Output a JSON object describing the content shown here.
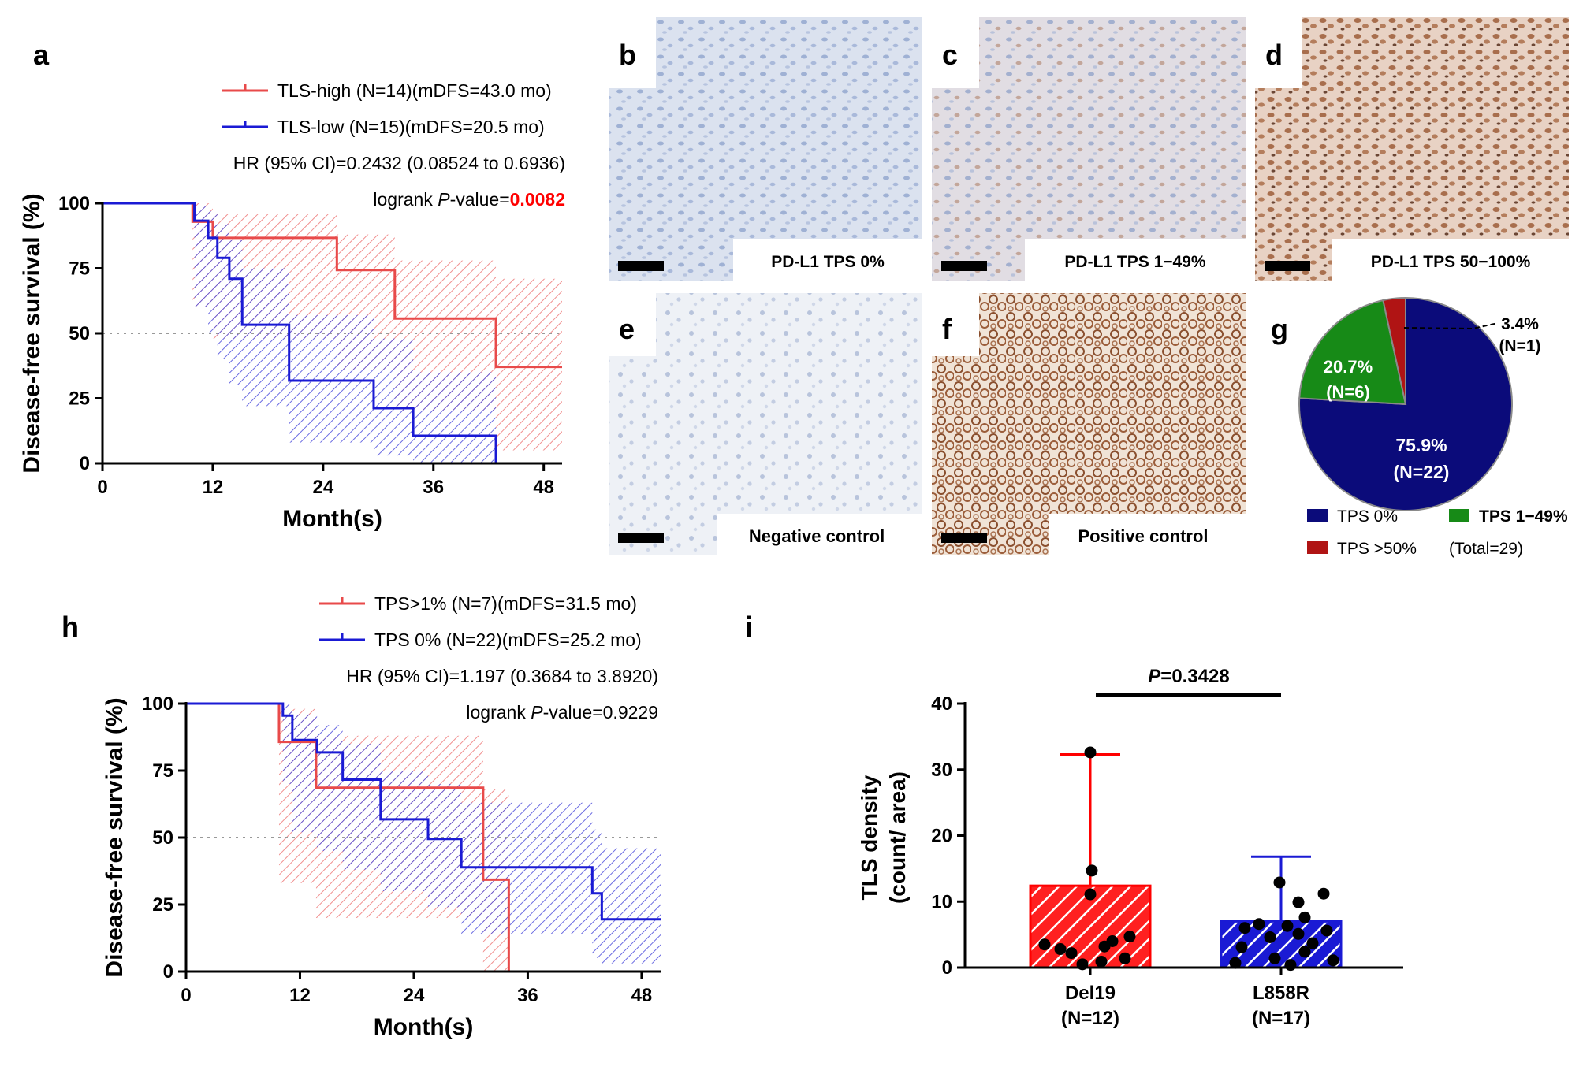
{
  "figure": {
    "panel_labels": [
      "a",
      "b",
      "c",
      "d",
      "e",
      "f",
      "g",
      "h",
      "i"
    ],
    "micrographs": [
      {
        "id": "b",
        "caption": "PD-L1 TPS 0%",
        "tone": "#c9d4e6"
      },
      {
        "id": "c",
        "caption": "PD-L1 TPS 1−49%",
        "tone": "#d6d3dc"
      },
      {
        "id": "d",
        "caption": "PD-L1 TPS 50−100%",
        "tone": "#c9a48f"
      },
      {
        "id": "e",
        "caption": "Negative control",
        "tone": "#dfe4ee"
      },
      {
        "id": "f",
        "caption": "Positive control",
        "tone": "#b57c5d"
      }
    ]
  },
  "chart_data": [
    {
      "id": "a",
      "type": "line",
      "subtype": "kaplan-meier",
      "xlabel": "Month(s)",
      "ylabel": "Disease-free survival (%)",
      "xticks": [
        0,
        12,
        24,
        36,
        48
      ],
      "yticks": [
        0,
        25,
        50,
        75,
        100
      ],
      "xlim": [
        0,
        50
      ],
      "ylim": [
        0,
        100
      ],
      "legend": [
        {
          "text": "TLS-high (N=14)(mDFS=43.0 mo)",
          "color": "#e84a4a"
        },
        {
          "text": "TLS-low (N=15)(mDFS=20.5 mo)",
          "color": "#1a1ad4"
        }
      ],
      "stats": {
        "hr_text": "HR (95% CI)=0.2432 (0.08524 to 0.6936)",
        "logrank_prefix": "logrank ",
        "logrank_p": "P",
        "logrank_mid": "-value=",
        "logrank_value": "0.0082",
        "logrank_value_color": "#ff0000"
      },
      "series": [
        {
          "name": "TLS-high",
          "color": "#e84a4a",
          "x": [
            0,
            9.8,
            9.8,
            12,
            25.5,
            25.5,
            31.8,
            31.8,
            42.8,
            42.8,
            50
          ],
          "y": [
            100,
            100,
            92.9,
            86.7,
            86.7,
            74.3,
            74.3,
            55.7,
            55.7,
            37.1,
            37.1
          ],
          "ci_upper": [
            100,
            100,
            100,
            96,
            96,
            88,
            88,
            78,
            78,
            71,
            71
          ],
          "ci_lower": [
            100,
            100,
            60,
            48,
            48,
            36,
            36,
            20,
            20,
            5,
            5
          ]
        },
        {
          "name": "TLS-low",
          "color": "#1a1ad4",
          "x": [
            0,
            10,
            10,
            11.5,
            12.5,
            13.8,
            15.2,
            20.3,
            29.5,
            33.8,
            42.8
          ],
          "y": [
            100,
            100,
            93.3,
            86.7,
            79,
            71,
            53.3,
            31.8,
            21.2,
            10.6,
            0
          ],
          "ci_upper": [
            100,
            100,
            99,
            97,
            92,
            86,
            75,
            57,
            48,
            35,
            20
          ],
          "ci_lower": [
            100,
            100,
            60,
            50,
            40,
            30,
            22,
            8,
            3,
            0,
            0
          ]
        }
      ]
    },
    {
      "id": "g",
      "type": "pie",
      "categories": [
        "TPS 0%",
        "TPS 1−49%",
        "TPS >50%"
      ],
      "values": [
        75.9,
        20.7,
        3.4
      ],
      "counts": [
        22,
        6,
        1
      ],
      "colors": [
        "#0b0b7a",
        "#178a17",
        "#b01414"
      ],
      "slice_labels": [
        "75.9%",
        "20.7%",
        "3.4%"
      ],
      "slice_counts": [
        "(N=22)",
        "(N=6)",
        "(N=1)"
      ],
      "total_text": "(Total=29)"
    },
    {
      "id": "h",
      "type": "line",
      "subtype": "kaplan-meier",
      "xlabel": "Month(s)",
      "ylabel": "Disease-free survival (%)",
      "xticks": [
        0,
        12,
        24,
        36,
        48
      ],
      "yticks": [
        0,
        25,
        50,
        75,
        100
      ],
      "xlim": [
        0,
        50
      ],
      "ylim": [
        0,
        100
      ],
      "legend": [
        {
          "text": "TPS>1% (N=7)(mDFS=31.5 mo)",
          "color": "#e84a4a"
        },
        {
          "text": "TPS 0% (N=22)(mDFS=25.2 mo)",
          "color": "#1a1ad4"
        }
      ],
      "stats": {
        "hr_text": "HR (95% CI)=1.197 (0.3684 to 3.8920)",
        "logrank_prefix": "logrank ",
        "logrank_p": "P",
        "logrank_mid": "-value=",
        "logrank_value": "0.9229",
        "logrank_value_color": "#000000"
      },
      "series": [
        {
          "name": "TPS>1%",
          "color": "#e84a4a",
          "x": [
            0,
            9.8,
            9.8,
            13.7,
            31.3,
            31.3,
            34,
            34
          ],
          "y": [
            100,
            100,
            85.7,
            68.6,
            68.6,
            34.3,
            34.3,
            0
          ],
          "ci_upper": [
            100,
            100,
            98,
            88,
            88,
            68,
            68,
            10
          ],
          "ci_lower": [
            100,
            100,
            33,
            20,
            20,
            0,
            0,
            0
          ]
        },
        {
          "name": "TPS 0%",
          "color": "#1a1ad4",
          "x": [
            0,
            10.2,
            10.2,
            11.2,
            13.8,
            16.5,
            20.5,
            25.5,
            29,
            42.8,
            43.8
          ],
          "y": [
            100,
            100,
            95.5,
            86.4,
            81.8,
            71.6,
            56.8,
            49.5,
            38.9,
            29.2,
            19.5
          ],
          "ci_upper": [
            100,
            100,
            100,
            96,
            92,
            85,
            75,
            70,
            63,
            53,
            46
          ],
          "ci_lower": [
            100,
            100,
            70,
            52,
            45,
            38,
            30,
            24,
            14,
            5,
            3
          ]
        }
      ]
    },
    {
      "id": "i",
      "type": "bar",
      "categories": [
        "Del19",
        "L858R"
      ],
      "category_counts": [
        "(N=12)",
        "(N=17)"
      ],
      "values": [
        12.4,
        7.0
      ],
      "error_max": [
        32.3,
        16.8
      ],
      "colors": [
        "#ff0000",
        "#1a1ad4"
      ],
      "ylabel_line1": "TLS density",
      "ylabel_line2": "(count/ area)",
      "yticks": [
        0,
        10,
        20,
        30,
        40
      ],
      "ylim": [
        0,
        40
      ],
      "significance_prefix": "P",
      "significance_rest": "=0.3428",
      "points": [
        [
          32.6,
          14.7,
          11.1,
          4.7,
          4.0,
          3.5,
          3.2,
          2.8,
          2.2,
          1.4,
          0.9,
          0.5
        ],
        [
          12.9,
          11.2,
          9.9,
          7.6,
          6.6,
          6.3,
          6.0,
          5.6,
          5.1,
          4.6,
          3.7,
          3.1,
          2.4,
          1.4,
          1.1,
          0.7,
          0.4
        ]
      ]
    }
  ]
}
